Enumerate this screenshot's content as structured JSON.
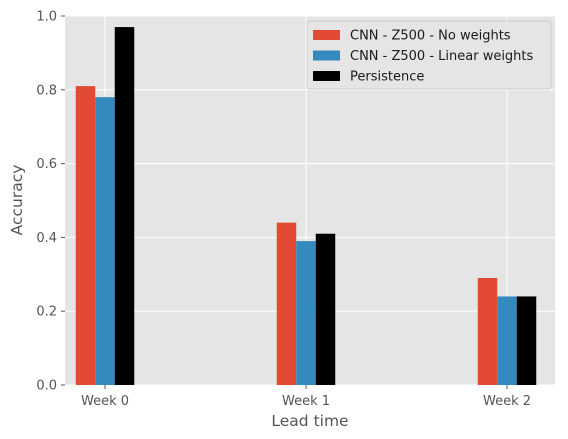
{
  "chart_data": {
    "type": "bar",
    "title": "",
    "xlabel": "Lead time",
    "ylabel": "Accuracy",
    "categories": [
      "Week 0",
      "Week 1",
      "Week 2"
    ],
    "ylim": [
      0,
      1
    ],
    "yticks": [
      "0.0",
      "0.2",
      "0.4",
      "0.6",
      "0.8",
      "1.0"
    ],
    "grid": true,
    "legend_position": "top-right",
    "series": [
      {
        "name": "CNN - Z500 - No weights",
        "color": "#E24A33",
        "values": [
          0.81,
          0.44,
          0.29
        ]
      },
      {
        "name": "CNN - Z500 - Linear weights",
        "color": "#348ABD",
        "values": [
          0.78,
          0.39,
          0.24
        ]
      },
      {
        "name": "Persistence",
        "color": "#000000",
        "values": [
          0.97,
          0.41,
          0.24
        ]
      }
    ]
  }
}
